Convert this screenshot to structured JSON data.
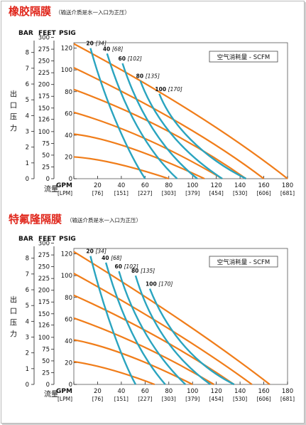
{
  "chart_data": [
    {
      "type": "line",
      "title": "橡胶隔膜",
      "subtitle": "（输送介质是水一入口为正压）",
      "legend_title": "空气消耗量 - SCFM",
      "units": {
        "bar": "BAR",
        "feet": "FEET",
        "psig": "PSIG",
        "gpm": "GPM",
        "lpm": "[LPM]"
      },
      "ylabel": "出口压力",
      "xlabel": "流量",
      "xlim": [
        0,
        180
      ],
      "ylim": [
        0,
        125
      ],
      "x_ticks": [
        0,
        20,
        40,
        60,
        80,
        100,
        120,
        140,
        160,
        180
      ],
      "x_lpm_ticks": [
        "[76]",
        "[151]",
        "[227]",
        "[303]",
        "[379]",
        "[454]",
        "[530]",
        "[606]",
        "[681]"
      ],
      "psig_ticks": [
        0,
        20,
        40,
        60,
        80,
        100,
        120
      ],
      "feet_ticks": [
        0,
        25,
        50,
        75,
        100,
        126,
        150,
        175,
        200,
        225,
        250,
        275,
        300
      ],
      "bar_ticks": [
        0,
        1,
        2,
        3,
        4,
        5,
        6,
        7,
        8
      ],
      "pressure_series": [
        {
          "points": [
            [
              0,
              124
            ],
            [
              110,
              60
            ],
            [
              180,
              0
            ]
          ]
        },
        {
          "points": [
            [
              0,
              102
            ],
            [
              100,
              50
            ],
            [
              160,
              0
            ]
          ]
        },
        {
          "points": [
            [
              0,
              82
            ],
            [
              80,
              50
            ],
            [
              145,
              0
            ]
          ]
        },
        {
          "points": [
            [
              0,
              61
            ],
            [
              60,
              42
            ],
            [
              125,
              0
            ]
          ]
        },
        {
          "points": [
            [
              0,
              41
            ],
            [
              40,
              36
            ],
            [
              110,
              0
            ]
          ]
        },
        {
          "points": [
            [
              0,
              20
            ],
            [
              30,
              18
            ],
            [
              80,
              0
            ]
          ]
        }
      ],
      "air_series": [
        {
          "label": "20",
          "lpm_label": "[34]",
          "points": [
            [
              14,
              120
            ],
            [
              28,
              65
            ],
            [
              48,
              20
            ],
            [
              60,
              0
            ]
          ]
        },
        {
          "label": "40",
          "lpm_label": "[68]",
          "points": [
            [
              28,
              115
            ],
            [
              42,
              65
            ],
            [
              62,
              25
            ],
            [
              87,
              0
            ]
          ]
        },
        {
          "label": "60",
          "lpm_label": "[102]",
          "points": [
            [
              41,
              106
            ],
            [
              54,
              62
            ],
            [
              75,
              25
            ],
            [
              104,
              0
            ]
          ]
        },
        {
          "label": "80",
          "lpm_label": "[135]",
          "points": [
            [
              56,
              90
            ],
            [
              68,
              55
            ],
            [
              90,
              25
            ],
            [
              125,
              0
            ]
          ]
        },
        {
          "label": "100",
          "lpm_label": "[170]",
          "points": [
            [
              72,
              78
            ],
            [
              82,
              50
            ],
            [
              108,
              20
            ],
            [
              145,
              0
            ]
          ]
        }
      ]
    },
    {
      "type": "line",
      "title": "特氟隆隔膜",
      "subtitle": "（输送介质是水一入口为正压）",
      "legend_title": "空气消耗量 - SCFM",
      "units": {
        "bar": "BAR",
        "feet": "FEET",
        "psig": "PSIG",
        "gpm": "GPM",
        "lpm": "[LPM]"
      },
      "ylabel": "出口压力",
      "xlabel": "流量",
      "xlim": [
        0,
        180
      ],
      "ylim": [
        0,
        125
      ],
      "x_ticks": [
        0,
        20,
        40,
        60,
        80,
        100,
        120,
        140,
        160,
        180
      ],
      "x_lpm_ticks": [
        "[76]",
        "[151]",
        "[227]",
        "[303]",
        "[379]",
        "[454]",
        "[530]",
        "[606]",
        "[681]"
      ],
      "psig_ticks": [
        0,
        20,
        40,
        60,
        80,
        100,
        120
      ],
      "feet_ticks": [
        0,
        25,
        50,
        75,
        100,
        126,
        150,
        175,
        200,
        225,
        250,
        275,
        300
      ],
      "bar_ticks": [
        0,
        1,
        2,
        3,
        4,
        5,
        6,
        7,
        8
      ],
      "pressure_series": [
        {
          "points": [
            [
              0,
              122
            ],
            [
              100,
              55
            ],
            [
              165,
              0
            ]
          ]
        },
        {
          "points": [
            [
              0,
              102
            ],
            [
              90,
              48
            ],
            [
              150,
              0
            ]
          ]
        },
        {
          "points": [
            [
              0,
              82
            ],
            [
              75,
              45
            ],
            [
              135,
              0
            ]
          ]
        },
        {
          "points": [
            [
              0,
              61
            ],
            [
              60,
              38
            ],
            [
              118,
              0
            ]
          ]
        },
        {
          "points": [
            [
              0,
              41
            ],
            [
              40,
              33
            ],
            [
              100,
              0
            ]
          ]
        },
        {
          "points": [
            [
              0,
              21
            ],
            [
              30,
              16
            ],
            [
              68,
              0
            ]
          ]
        }
      ],
      "air_series": [
        {
          "label": "20",
          "lpm_label": "[34]",
          "points": [
            [
              14,
              118
            ],
            [
              26,
              65
            ],
            [
              42,
              20
            ],
            [
              52,
              0
            ]
          ]
        },
        {
          "label": "40",
          "lpm_label": "[68]",
          "points": [
            [
              27,
              112
            ],
            [
              40,
              62
            ],
            [
              57,
              25
            ],
            [
              77,
              0
            ]
          ]
        },
        {
          "label": "60",
          "lpm_label": "[102]",
          "points": [
            [
              38,
              104
            ],
            [
              50,
              60
            ],
            [
              70,
              25
            ],
            [
              94,
              0
            ]
          ]
        },
        {
          "label": "80",
          "lpm_label": "[135]",
          "points": [
            [
              52,
              100
            ],
            [
              63,
              60
            ],
            [
              83,
              25
            ],
            [
              115,
              0
            ]
          ]
        },
        {
          "label": "100",
          "lpm_label": "[170]",
          "points": [
            [
              64,
              88
            ],
            [
              76,
              55
            ],
            [
              98,
              20
            ],
            [
              135,
              0
            ]
          ]
        }
      ]
    }
  ]
}
